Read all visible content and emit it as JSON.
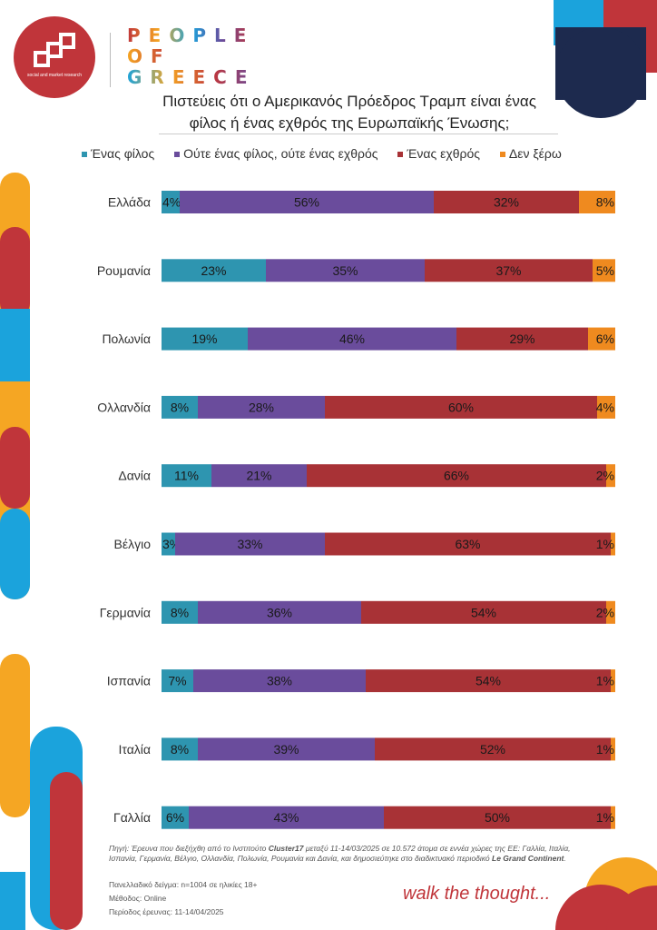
{
  "header": {
    "brand_lines": [
      "PEOPLE",
      "OF",
      "GREECE"
    ],
    "logo_caption": "social and market research",
    "title_line1": "Πιστεύεις ότι ο Αμερικανός Πρόεδρος Τραμπ είναι ένας",
    "title_line2": "φίλος ή ένας εχθρός της Ευρωπαϊκής Ένωσης;"
  },
  "legend": [
    {
      "label": "Ένας φίλος",
      "color": "#2e95b0"
    },
    {
      "label": "Ούτε ένας φίλος, ούτε ένας εχθρός",
      "color": "#6a4c9c"
    },
    {
      "label": "Ένας εχθρός",
      "color": "#a83236"
    },
    {
      "label": "Δεν ξέρω",
      "color": "#ef8a1f"
    }
  ],
  "chart_data": {
    "type": "bar",
    "orientation": "horizontal",
    "stacked": true,
    "title": "Πιστεύεις ότι ο Αμερικανός Πρόεδρος Τραμπ είναι ένας φίλος ή ένας εχθρός της Ευρωπαϊκής Ένωσης;",
    "categories": [
      "Ελλάδα",
      "Ρουμανία",
      "Πολωνία",
      "Ολλανδία",
      "Δανία",
      "Βέλγιο",
      "Γερμανία",
      "Ισπανία",
      "Ιταλία",
      "Γαλλία"
    ],
    "series": [
      {
        "name": "Ένας φίλος",
        "values": [
          4,
          23,
          19,
          8,
          11,
          3,
          8,
          7,
          8,
          6
        ]
      },
      {
        "name": "Ούτε ένας φίλος, ούτε ένας εχθρός",
        "values": [
          56,
          35,
          46,
          28,
          21,
          33,
          36,
          38,
          39,
          43
        ]
      },
      {
        "name": "Ένας εχθρός",
        "values": [
          32,
          37,
          29,
          60,
          66,
          63,
          54,
          54,
          52,
          50
        ]
      },
      {
        "name": "Δεν ξέρω",
        "values": [
          8,
          5,
          6,
          4,
          2,
          1,
          2,
          1,
          1,
          1
        ]
      }
    ],
    "value_suffix": "%",
    "legend_position": "top",
    "grid": false
  },
  "footer": {
    "source_prefix": "Πηγή: Έρευνα που διεξήχθη από το Ινστιτούτο ",
    "source_bold1": "Cluster17",
    "source_mid": " μεταξύ 11-14/03/2025 σε 10.572 άτομα σε εννέα χώρες της ΕΕ: Γαλλία, Ιταλία, Ισπανία, Γερμανία, Βέλγιο, Ολλανδία, Πολωνία, Ρουμανία και Δανία, και δημοσιεύτηκε στο διαδικτυακό περιοδικό ",
    "source_bold2": "Le Grand Continent",
    "source_end": ".",
    "sample": "Πανελλαδικό δείγμα: n=1004 σε ηλικίες 18+",
    "method": "Μέθοδος: Online",
    "period": "Περίοδος έρευνας: 11-14/04/2025",
    "slogan": "walk the thought..."
  },
  "colors": {
    "accent_red": "#c0353a",
    "accent_orange": "#f5a623",
    "accent_blue": "#1ba3dc",
    "navy": "#1d2a4e"
  }
}
